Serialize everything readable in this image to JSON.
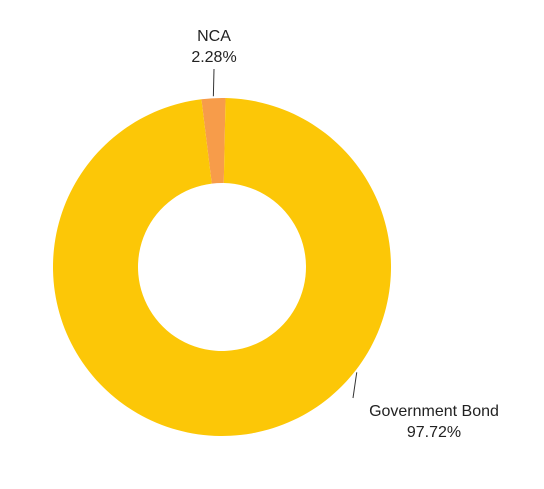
{
  "chart_data": {
    "type": "pie",
    "variant": "donut",
    "title": "",
    "slices": [
      {
        "label": "NCA",
        "value": 2.28,
        "value_label": "2.28%",
        "color": "#f79c4a"
      },
      {
        "label": "Government Bond",
        "value": 97.72,
        "value_label": "97.72%",
        "color": "#fcc707"
      }
    ],
    "legend": "none"
  }
}
